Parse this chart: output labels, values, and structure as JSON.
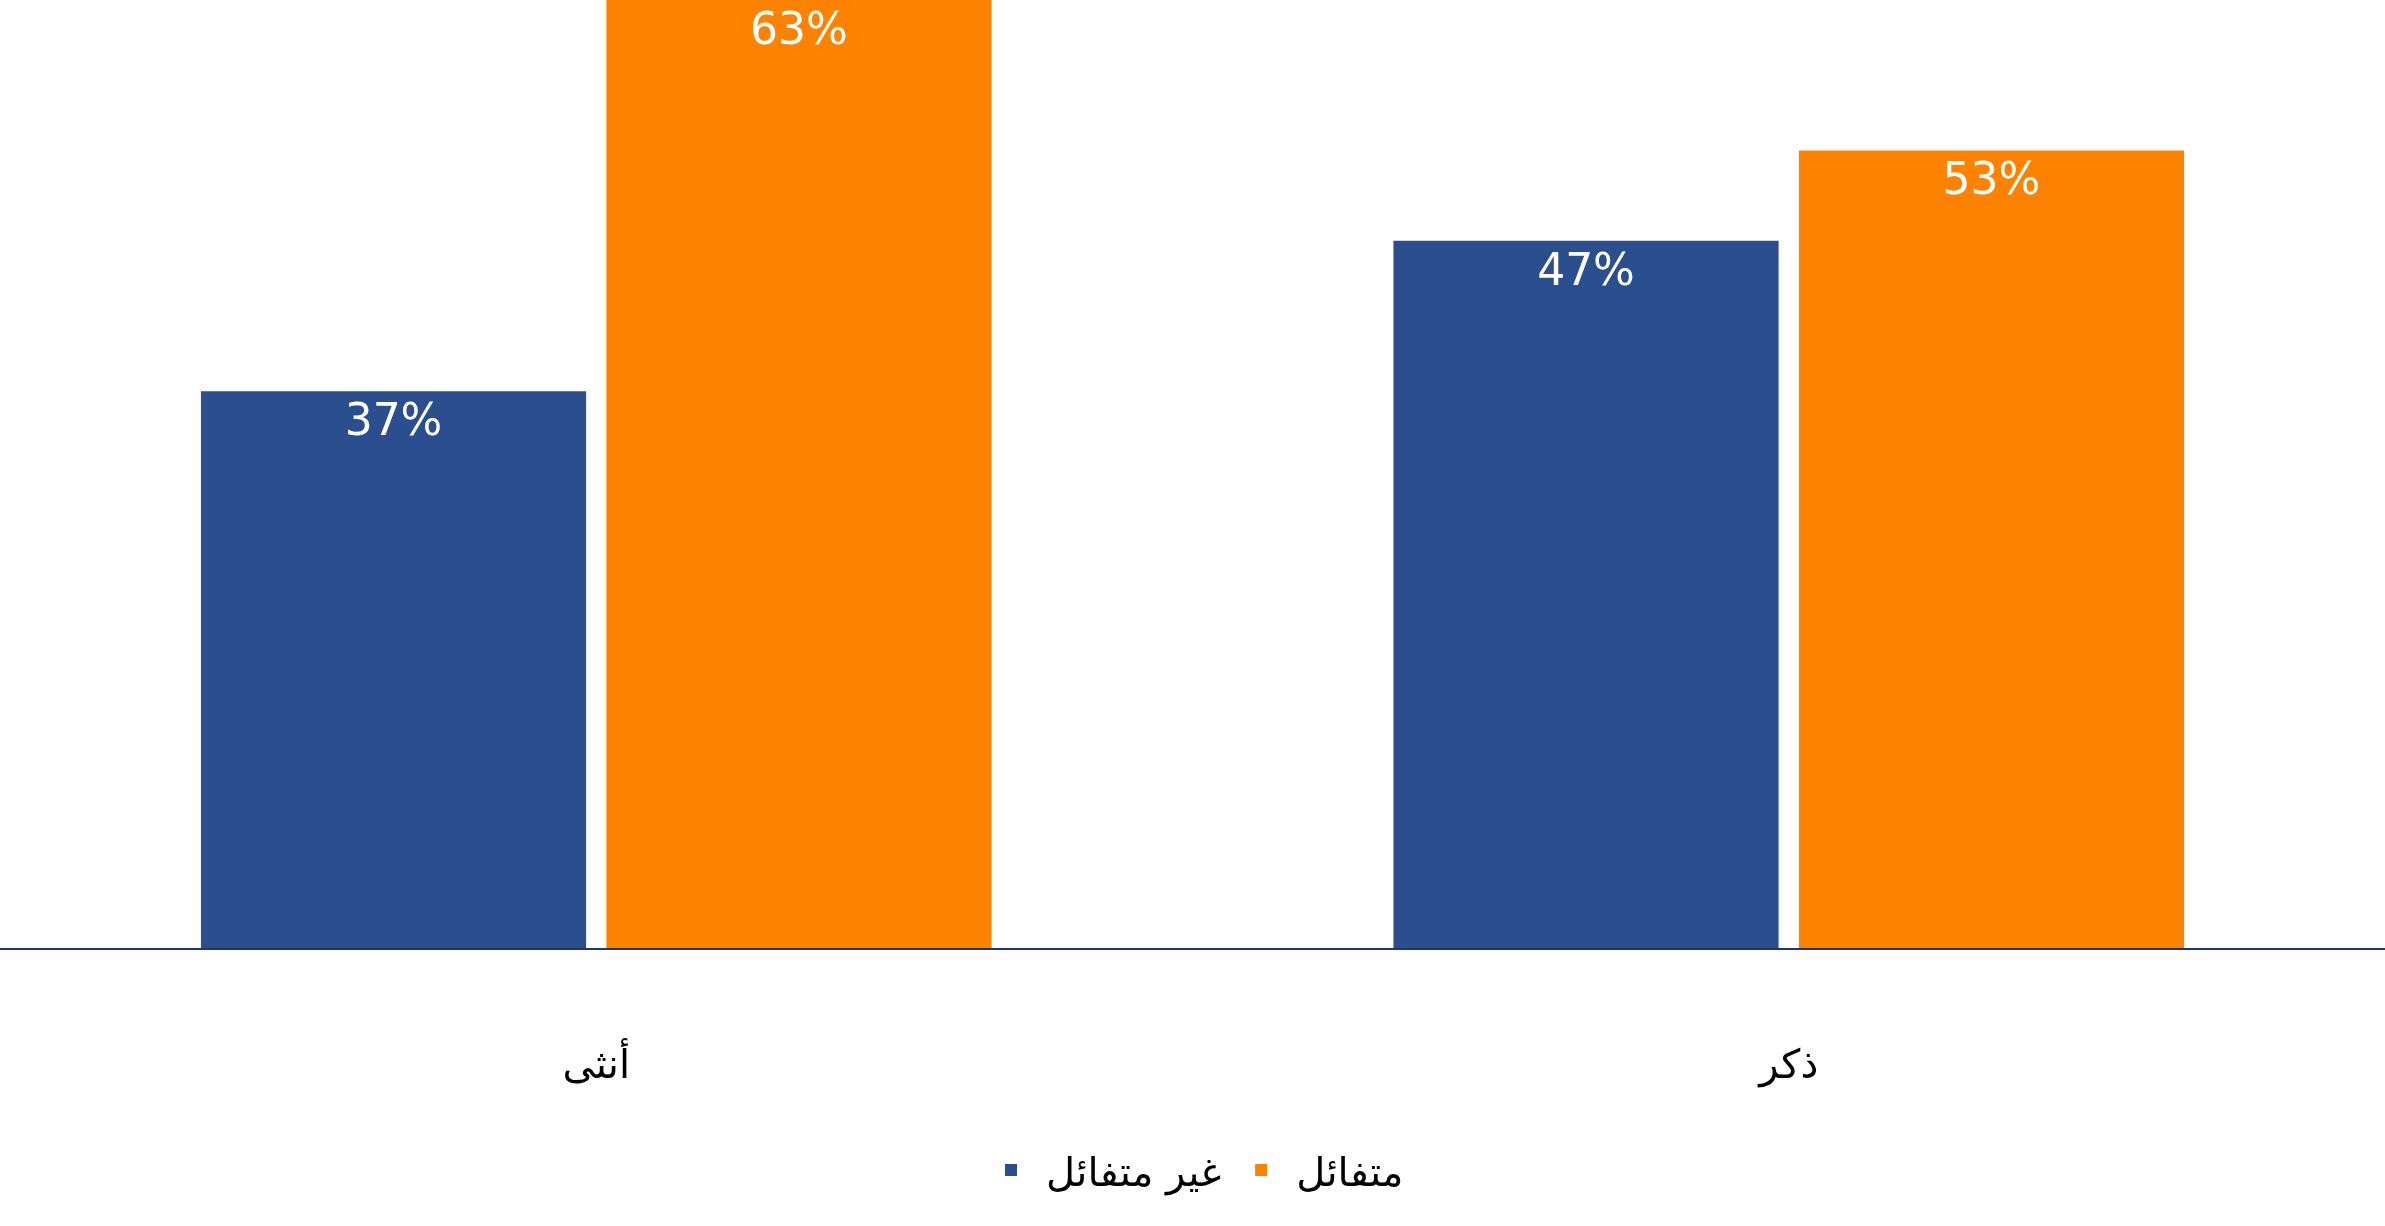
{
  "chart_data": {
    "type": "bar",
    "categories": [
      "أنثى",
      "ذكر"
    ],
    "series": [
      {
        "name": "غير متفائل",
        "color": "#2b4f8e",
        "values": [
          37,
          47
        ],
        "value_labels": [
          "37%",
          "47%"
        ]
      },
      {
        "name": "متفائل",
        "color": "#fd8200",
        "values": [
          63,
          53
        ],
        "value_labels": [
          "63%",
          "53%"
        ]
      }
    ],
    "legend": "bottom"
  }
}
